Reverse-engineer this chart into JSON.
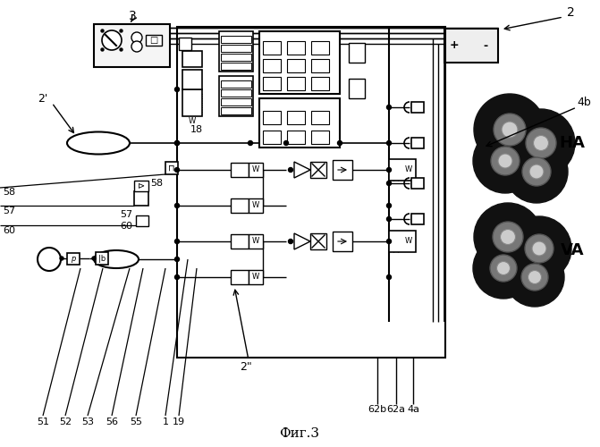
{
  "fig_label": "Фиг.3",
  "bg_color": "#ffffff",
  "labels": {
    "3": "3",
    "2": "2",
    "2p": "2'",
    "2pp": "2\"",
    "18": "18",
    "58": "58",
    "57": "57",
    "60": "60",
    "51": "51",
    "52": "52",
    "53": "53",
    "56": "56",
    "55": "55",
    "1": "1",
    "19": "19",
    "4b": "4b",
    "4a": "4a",
    "62a": "62a",
    "62b": "62b",
    "HA": "HA",
    "VA": "VA"
  }
}
